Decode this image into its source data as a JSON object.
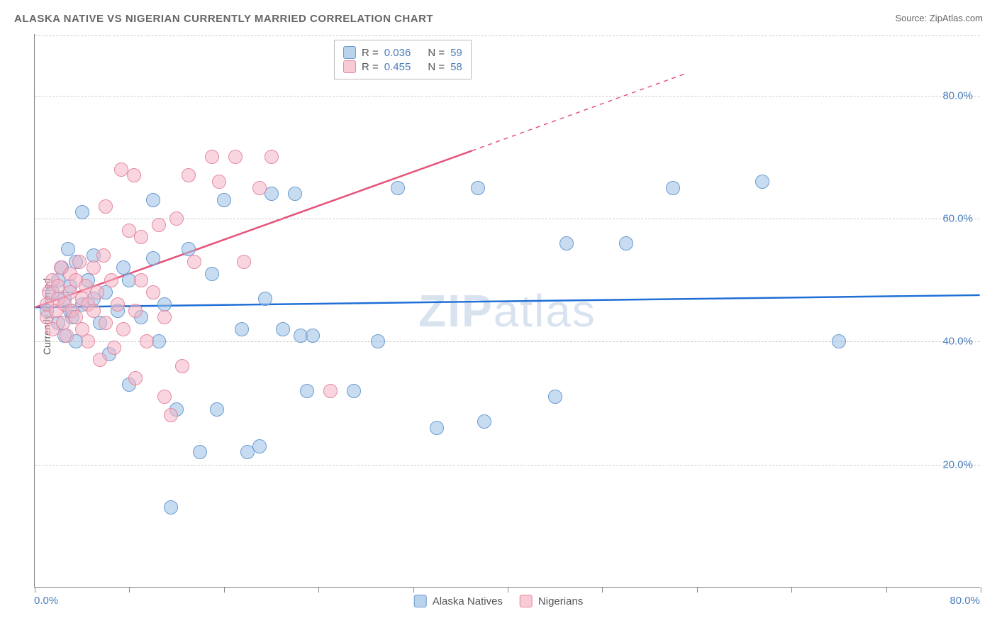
{
  "title": "ALASKA NATIVE VS NIGERIAN CURRENTLY MARRIED CORRELATION CHART",
  "source": "Source: ZipAtlas.com",
  "watermark_a": "ZIP",
  "watermark_b": "atlas",
  "y_axis_label": "Currently Married",
  "chart": {
    "type": "scatter",
    "xlim": [
      0,
      80
    ],
    "ylim": [
      0,
      90
    ],
    "y_ticks": [
      20,
      40,
      60,
      80
    ],
    "y_tick_labels": [
      "20.0%",
      "40.0%",
      "60.0%",
      "80.0%"
    ],
    "x_tick_positions": [
      0,
      8,
      16,
      24,
      32,
      40,
      48,
      56,
      64,
      72,
      80
    ],
    "x_min_label": "0.0%",
    "x_max_label": "80.0%",
    "background_color": "#ffffff",
    "grid_color": "#cccccc",
    "series": [
      {
        "name": "Alaska Natives",
        "color_fill": "#9bc0e6",
        "color_stroke": "#6b9bd1",
        "r": "0.036",
        "n": "59",
        "trend": {
          "x1": 0,
          "y1": 45.5,
          "x2": 80,
          "y2": 47.5,
          "color": "#1f6fd6",
          "width": 2.5,
          "dash": "none"
        },
        "points": [
          [
            1,
            45
          ],
          [
            1.5,
            48
          ],
          [
            2,
            50
          ],
          [
            2,
            43
          ],
          [
            2.3,
            52
          ],
          [
            2.5,
            47
          ],
          [
            2.5,
            41
          ],
          [
            2.8,
            55
          ],
          [
            3,
            45
          ],
          [
            3,
            49
          ],
          [
            3.2,
            44
          ],
          [
            3.5,
            53
          ],
          [
            3.5,
            40
          ],
          [
            4,
            46
          ],
          [
            4,
            61
          ],
          [
            4.5,
            50
          ],
          [
            5,
            54
          ],
          [
            5,
            47
          ],
          [
            5.5,
            43
          ],
          [
            6,
            48
          ],
          [
            6.3,
            38
          ],
          [
            7,
            45
          ],
          [
            7.5,
            52
          ],
          [
            8,
            50
          ],
          [
            8,
            33
          ],
          [
            9,
            44
          ],
          [
            10,
            53.5
          ],
          [
            10,
            63
          ],
          [
            10.5,
            40
          ],
          [
            11,
            46
          ],
          [
            11.5,
            13
          ],
          [
            12,
            29
          ],
          [
            13,
            55
          ],
          [
            14,
            22
          ],
          [
            15,
            51
          ],
          [
            15.4,
            29
          ],
          [
            16,
            63
          ],
          [
            17.5,
            42
          ],
          [
            18,
            22
          ],
          [
            19,
            23
          ],
          [
            19.5,
            47
          ],
          [
            20,
            64
          ],
          [
            21,
            42
          ],
          [
            22,
            64
          ],
          [
            22.5,
            41
          ],
          [
            23,
            32
          ],
          [
            23.5,
            41
          ],
          [
            27,
            32
          ],
          [
            29,
            40
          ],
          [
            30.7,
            65
          ],
          [
            34,
            26
          ],
          [
            37.5,
            65
          ],
          [
            38,
            27
          ],
          [
            44,
            31
          ],
          [
            45,
            56
          ],
          [
            50,
            56
          ],
          [
            54,
            65
          ],
          [
            61.5,
            66
          ],
          [
            68,
            40
          ]
        ]
      },
      {
        "name": "Nigerians",
        "color_fill": "#f4b4c4",
        "color_stroke": "#e48aa3",
        "r": "0.455",
        "n": "58",
        "trend_solid": {
          "x1": 0,
          "y1": 45.5,
          "x2": 37,
          "y2": 71,
          "color": "#e6537a",
          "width": 2.5
        },
        "trend_dash": {
          "x1": 37,
          "y1": 71,
          "x2": 55,
          "y2": 83.5,
          "color": "#e6537a",
          "width": 1.5
        },
        "points": [
          [
            1,
            44
          ],
          [
            1,
            46
          ],
          [
            1.2,
            48
          ],
          [
            1.5,
            42
          ],
          [
            1.5,
            50
          ],
          [
            1.8,
            45
          ],
          [
            2,
            47
          ],
          [
            2,
            49
          ],
          [
            2.2,
            52
          ],
          [
            2.4,
            43
          ],
          [
            2.5,
            46
          ],
          [
            2.7,
            41
          ],
          [
            3,
            48
          ],
          [
            3,
            51
          ],
          [
            3.2,
            45
          ],
          [
            3.5,
            50
          ],
          [
            3.5,
            44
          ],
          [
            3.8,
            53
          ],
          [
            4,
            47
          ],
          [
            4,
            42
          ],
          [
            4.3,
            49
          ],
          [
            4.5,
            46
          ],
          [
            4.5,
            40
          ],
          [
            5,
            52
          ],
          [
            5,
            45
          ],
          [
            5.3,
            48
          ],
          [
            5.5,
            37
          ],
          [
            5.8,
            54
          ],
          [
            6,
            43
          ],
          [
            6,
            62
          ],
          [
            6.5,
            50
          ],
          [
            6.7,
            39
          ],
          [
            7,
            46
          ],
          [
            7.3,
            68
          ],
          [
            7.5,
            42
          ],
          [
            8,
            58
          ],
          [
            8.4,
            67
          ],
          [
            8.5,
            45
          ],
          [
            8.5,
            34
          ],
          [
            9,
            50
          ],
          [
            9,
            57
          ],
          [
            9.5,
            40
          ],
          [
            10,
            48
          ],
          [
            10.5,
            59
          ],
          [
            11,
            44
          ],
          [
            11,
            31
          ],
          [
            11.5,
            28
          ],
          [
            12,
            60
          ],
          [
            12.5,
            36
          ],
          [
            13,
            67
          ],
          [
            13.5,
            53
          ],
          [
            15,
            70
          ],
          [
            15.6,
            66
          ],
          [
            17,
            70
          ],
          [
            17.7,
            53
          ],
          [
            19,
            65
          ],
          [
            20,
            70
          ],
          [
            25,
            32
          ]
        ]
      }
    ]
  },
  "legend_top": {
    "r_label": "R =",
    "n_label": "N ="
  },
  "legend_bottom": {
    "items": [
      "Alaska Natives",
      "Nigerians"
    ]
  }
}
